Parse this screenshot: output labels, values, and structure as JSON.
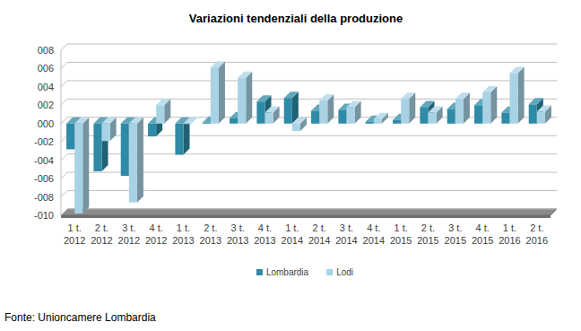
{
  "chart_data": {
    "type": "bar",
    "title": "Variazioni tendenziali della produzione",
    "source": "Fonte: Unioncamere Lombardia",
    "categories": [
      "1 t. 2012",
      "2 t. 2012",
      "3 t. 2012",
      "4 t. 2012",
      "1 t. 2013",
      "2 t. 2013",
      "3 t. 2013",
      "4 t. 2013",
      "1 t. 2014",
      "2 t. 2014",
      "3 t. 2014",
      "4 t. 2014",
      "1 t. 2015",
      "2 t. 2015",
      "3 t. 2015",
      "4 t. 2015",
      "1 t. 2016",
      "2 t. 2016"
    ],
    "series": [
      {
        "name": "Lombardia",
        "color": "#2e8aa6",
        "values": [
          -2.8,
          -5.2,
          -5.7,
          -1.4,
          -3.4,
          0.1,
          0.6,
          2.4,
          2.8,
          1.4,
          1.5,
          0.2,
          0.4,
          1.8,
          1.6,
          2.0,
          1.2,
          2.1
        ]
      },
      {
        "name": "Lodi",
        "color": "#a8d3e5",
        "values": [
          -9.8,
          -1.9,
          -8.6,
          2.0,
          0.0,
          6.1,
          5.0,
          1.2,
          -0.8,
          2.5,
          1.8,
          0.5,
          2.7,
          1.2,
          2.7,
          3.4,
          5.5,
          1.3
        ]
      }
    ],
    "ylim": [
      -10,
      8
    ],
    "yticks": [
      {
        "value": -10,
        "label": "-010"
      },
      {
        "value": -8,
        "label": "-008"
      },
      {
        "value": -6,
        "label": "-006"
      },
      {
        "value": -4,
        "label": "-004"
      },
      {
        "value": -2,
        "label": "-002"
      },
      {
        "value": 0,
        "label": "000"
      },
      {
        "value": 2,
        "label": "002"
      },
      {
        "value": 4,
        "label": "004"
      },
      {
        "value": 6,
        "label": "006"
      },
      {
        "value": 8,
        "label": "008"
      }
    ],
    "grid": true,
    "legend": "bottom"
  }
}
